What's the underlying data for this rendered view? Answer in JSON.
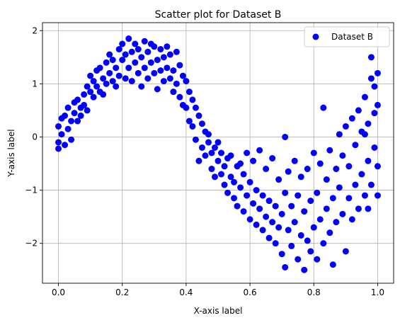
{
  "chart_data": {
    "type": "scatter",
    "title": "Scatter plot for Dataset B",
    "xlabel": "X-axis label",
    "ylabel": "Y-axis label",
    "xlim": [
      -0.05,
      1.05
    ],
    "ylim": [
      -2.75,
      2.15
    ],
    "x_ticks": [
      0.0,
      0.2,
      0.4,
      0.6,
      0.8,
      1.0
    ],
    "x_tick_labels": [
      "0.0",
      "0.2",
      "0.4",
      "0.6",
      "0.8",
      "1.0"
    ],
    "y_ticks": [
      -2,
      -1,
      0,
      1,
      2
    ],
    "y_tick_labels": [
      "−2",
      "−1",
      "0",
      "1",
      "2"
    ],
    "grid": true,
    "legend": {
      "placement": "top-right",
      "entries": [
        {
          "label": "Dataset B",
          "color": "#0000ff",
          "marker": "circle"
        }
      ]
    },
    "series": [
      {
        "name": "Dataset B",
        "color": "#0000ff",
        "points": [
          [
            0.0,
            -0.1
          ],
          [
            0.0,
            0.2
          ],
          [
            0.0,
            -0.22
          ],
          [
            0.01,
            0.05
          ],
          [
            0.01,
            0.35
          ],
          [
            0.02,
            -0.15
          ],
          [
            0.02,
            0.4
          ],
          [
            0.03,
            0.15
          ],
          [
            0.03,
            0.55
          ],
          [
            0.04,
            0.3
          ],
          [
            0.04,
            -0.05
          ],
          [
            0.05,
            0.45
          ],
          [
            0.05,
            0.65
          ],
          [
            0.06,
            0.3
          ],
          [
            0.06,
            0.7
          ],
          [
            0.07,
            0.55
          ],
          [
            0.07,
            0.4
          ],
          [
            0.08,
            0.8
          ],
          [
            0.08,
            0.6
          ],
          [
            0.09,
            0.95
          ],
          [
            0.09,
            0.5
          ],
          [
            0.1,
            0.85
          ],
          [
            0.1,
            1.15
          ],
          [
            0.11,
            0.75
          ],
          [
            0.11,
            1.05
          ],
          [
            0.12,
            0.95
          ],
          [
            0.12,
            1.25
          ],
          [
            0.13,
            0.85
          ],
          [
            0.13,
            1.3
          ],
          [
            0.14,
            1.1
          ],
          [
            0.14,
            0.8
          ],
          [
            0.15,
            1.4
          ],
          [
            0.15,
            1.0
          ],
          [
            0.16,
            1.2
          ],
          [
            0.16,
            1.55
          ],
          [
            0.17,
            1.05
          ],
          [
            0.17,
            1.45
          ],
          [
            0.18,
            1.3
          ],
          [
            0.18,
            0.95
          ],
          [
            0.19,
            1.65
          ],
          [
            0.19,
            1.15
          ],
          [
            0.2,
            1.45
          ],
          [
            0.2,
            1.75
          ],
          [
            0.21,
            1.1
          ],
          [
            0.21,
            1.55
          ],
          [
            0.22,
            1.3
          ],
          [
            0.22,
            1.85
          ],
          [
            0.23,
            1.6
          ],
          [
            0.23,
            1.05
          ],
          [
            0.24,
            1.75
          ],
          [
            0.24,
            1.4
          ],
          [
            0.25,
            1.2
          ],
          [
            0.25,
            1.65
          ],
          [
            0.26,
            1.5
          ],
          [
            0.26,
            0.95
          ],
          [
            0.27,
            1.8
          ],
          [
            0.27,
            1.3
          ],
          [
            0.28,
            1.6
          ],
          [
            0.28,
            1.1
          ],
          [
            0.29,
            1.75
          ],
          [
            0.29,
            1.4
          ],
          [
            0.3,
            1.2
          ],
          [
            0.3,
            1.7
          ],
          [
            0.31,
            1.45
          ],
          [
            0.31,
            0.9
          ],
          [
            0.32,
            1.65
          ],
          [
            0.32,
            1.25
          ],
          [
            0.33,
            1.5
          ],
          [
            0.33,
            1.05
          ],
          [
            0.34,
            1.7
          ],
          [
            0.34,
            1.3
          ],
          [
            0.35,
            1.1
          ],
          [
            0.35,
            1.55
          ],
          [
            0.36,
            1.25
          ],
          [
            0.36,
            0.85
          ],
          [
            0.37,
            1.6
          ],
          [
            0.37,
            1.0
          ],
          [
            0.38,
            1.35
          ],
          [
            0.38,
            0.75
          ],
          [
            0.39,
            1.15
          ],
          [
            0.39,
            0.6
          ],
          [
            0.4,
            1.05
          ],
          [
            0.4,
            0.55
          ],
          [
            0.41,
            0.85
          ],
          [
            0.41,
            0.3
          ],
          [
            0.42,
            0.7
          ],
          [
            0.42,
            0.2
          ],
          [
            0.43,
            0.55
          ],
          [
            0.43,
            -0.05
          ],
          [
            0.44,
            0.4
          ],
          [
            0.44,
            -0.45
          ],
          [
            0.45,
            0.25
          ],
          [
            0.45,
            -0.2
          ],
          [
            0.46,
            0.1
          ],
          [
            0.46,
            -0.35
          ],
          [
            0.47,
            -0.1
          ],
          [
            0.47,
            0.05
          ],
          [
            0.48,
            -0.3
          ],
          [
            0.48,
            -0.6
          ],
          [
            0.49,
            -0.2
          ],
          [
            0.49,
            -0.75
          ],
          [
            0.5,
            -0.45
          ],
          [
            0.5,
            -0.1
          ],
          [
            0.51,
            -0.7
          ],
          [
            0.51,
            -0.3
          ],
          [
            0.52,
            -0.9
          ],
          [
            0.52,
            -0.55
          ],
          [
            0.53,
            -0.4
          ],
          [
            0.53,
            -1.05
          ],
          [
            0.54,
            -0.75
          ],
          [
            0.54,
            -0.35
          ],
          [
            0.55,
            -1.15
          ],
          [
            0.55,
            -0.85
          ],
          [
            0.56,
            -0.55
          ],
          [
            0.56,
            -1.3
          ],
          [
            0.57,
            -0.95
          ],
          [
            0.57,
            -0.5
          ],
          [
            0.58,
            -1.4
          ],
          [
            0.58,
            -0.7
          ],
          [
            0.59,
            -1.1
          ],
          [
            0.59,
            -0.3
          ],
          [
            0.6,
            -1.55
          ],
          [
            0.6,
            -0.85
          ],
          [
            0.61,
            -1.25
          ],
          [
            0.61,
            -0.45
          ],
          [
            0.62,
            -1.65
          ],
          [
            0.62,
            -1.0
          ],
          [
            0.63,
            -1.35
          ],
          [
            0.63,
            -0.25
          ],
          [
            0.64,
            -1.75
          ],
          [
            0.64,
            -1.1
          ],
          [
            0.65,
            -1.5
          ],
          [
            0.65,
            -0.6
          ],
          [
            0.66,
            -1.9
          ],
          [
            0.66,
            -1.2
          ],
          [
            0.67,
            -1.6
          ],
          [
            0.67,
            -0.4
          ],
          [
            0.68,
            -2.0
          ],
          [
            0.68,
            -1.3
          ],
          [
            0.69,
            -1.7
          ],
          [
            0.69,
            -0.8
          ],
          [
            0.7,
            -2.2
          ],
          [
            0.7,
            -1.45
          ],
          [
            0.71,
            -1.05
          ],
          [
            0.71,
            0.0
          ],
          [
            0.71,
            -2.45
          ],
          [
            0.72,
            -1.75
          ],
          [
            0.72,
            -0.65
          ],
          [
            0.73,
            -2.05
          ],
          [
            0.73,
            -1.3
          ],
          [
            0.74,
            -1.6
          ],
          [
            0.74,
            -0.45
          ],
          [
            0.75,
            -2.3
          ],
          [
            0.75,
            -1.1
          ],
          [
            0.76,
            -1.85
          ],
          [
            0.76,
            -0.75
          ],
          [
            0.77,
            -2.5
          ],
          [
            0.77,
            -1.4
          ],
          [
            0.78,
            -1.95
          ],
          [
            0.78,
            -0.6
          ],
          [
            0.79,
            -2.15
          ],
          [
            0.79,
            -1.2
          ],
          [
            0.8,
            -1.7
          ],
          [
            0.8,
            -0.3
          ],
          [
            0.81,
            -2.3
          ],
          [
            0.81,
            -1.05
          ],
          [
            0.82,
            -1.55
          ],
          [
            0.82,
            -0.5
          ],
          [
            0.83,
            -2.0
          ],
          [
            0.83,
            0.55
          ],
          [
            0.84,
            -1.35
          ],
          [
            0.84,
            -0.8
          ],
          [
            0.85,
            -1.8
          ],
          [
            0.85,
            -0.25
          ],
          [
            0.86,
            -2.4
          ],
          [
            0.86,
            -1.15
          ],
          [
            0.87,
            -0.6
          ],
          [
            0.87,
            -1.6
          ],
          [
            0.88,
            0.05
          ],
          [
            0.88,
            -0.95
          ],
          [
            0.89,
            -1.45
          ],
          [
            0.89,
            -0.35
          ],
          [
            0.9,
            -2.15
          ],
          [
            0.9,
            0.2
          ],
          [
            0.91,
            -1.15
          ],
          [
            0.91,
            -0.55
          ],
          [
            0.92,
            -1.55
          ],
          [
            0.92,
            0.35
          ],
          [
            0.93,
            -0.9
          ],
          [
            0.93,
            -0.15
          ],
          [
            0.94,
            -1.35
          ],
          [
            0.94,
            0.5
          ],
          [
            0.95,
            -0.7
          ],
          [
            0.95,
            0.1
          ],
          [
            0.96,
            -1.1
          ],
          [
            0.96,
            0.75
          ],
          [
            0.97,
            -0.45
          ],
          [
            0.97,
            0.25
          ],
          [
            0.98,
            -0.9
          ],
          [
            0.98,
            1.5
          ],
          [
            0.99,
            -0.2
          ],
          [
            0.99,
            0.95
          ],
          [
            1.0,
            -0.55
          ],
          [
            1.0,
            1.2
          ],
          [
            1.0,
            0.6
          ],
          [
            1.0,
            -1.1
          ],
          [
            0.99,
            0.45
          ],
          [
            0.98,
            1.1
          ],
          [
            0.97,
            -1.35
          ],
          [
            0.96,
            0.05
          ]
        ]
      }
    ]
  }
}
